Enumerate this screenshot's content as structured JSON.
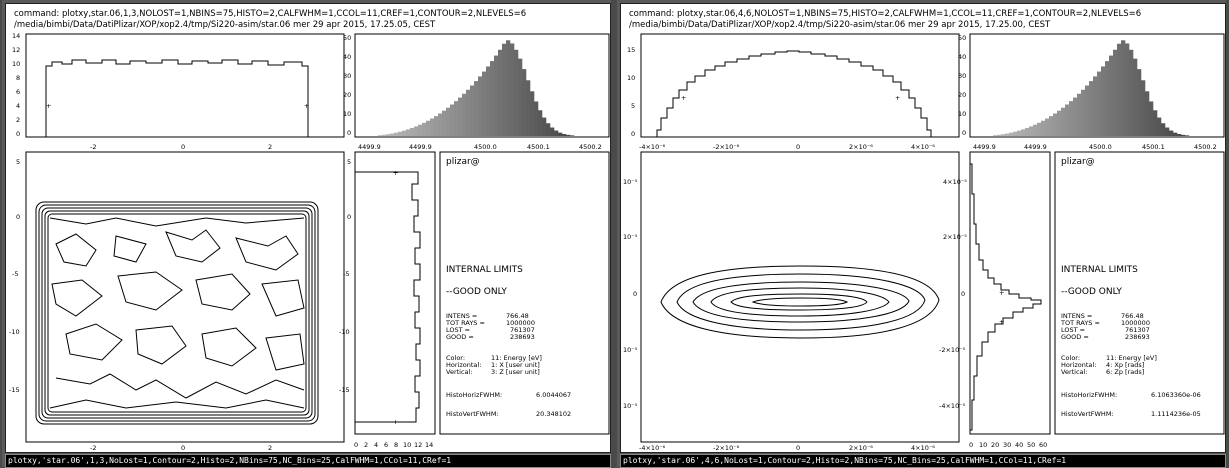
{
  "panels": [
    {
      "header_line1": "command: plotxy,star.06,1,3,NOLOST=1,NBINS=75,HISTO=2,CALFWHM=1,CCOL=11,CREF=1,CONTOUR=2,NLEVELS=6",
      "header_line2": "/media/bimbi/Data/DatiPlizar/XOP/xop2.4/tmp/Si220-asim/star.06   mer 29 apr 2015, 17.25.05, CEST",
      "top_hist_yticks": [
        "14",
        "12",
        "10",
        "8",
        "6",
        "4",
        "2",
        "0"
      ],
      "top_hist_xticks": [
        "-2",
        "0",
        "2"
      ],
      "energy_yticks": [
        "50",
        "40",
        "30",
        "20",
        "10",
        "0"
      ],
      "energy_xticks": [
        "4499.9",
        "4499.9",
        "4500.0",
        "4500.1",
        "4500.2"
      ],
      "main_yticks": [
        "5",
        "0",
        "-5",
        "-10",
        "-15"
      ],
      "main_xticks": [
        "-2",
        "0",
        "2"
      ],
      "side_yticks": [
        "5",
        "0",
        "-5",
        "-10",
        "-15"
      ],
      "side_xticks": [
        "0",
        "2",
        "4",
        "6",
        "8",
        "10",
        "12",
        "14"
      ],
      "info": {
        "user": "plizar@",
        "limits": "INTERNAL LIMITS",
        "good_only": "--GOOD ONLY",
        "intens_label": "INTENS  =",
        "intens_value": "766.48",
        "totrays_label": "TOT RAYS =",
        "totrays_value": "1000000",
        "lost_label": "LOST =",
        "lost_value": "761307",
        "good_label": "GOOD =",
        "good_value": "238693",
        "color_label": "Color:",
        "color_value": "11: Energy [eV]",
        "horiz_label": "Horizontal:",
        "horiz_value": "1: X [user unit]",
        "vert_label": "Vertical:",
        "vert_value": "3: Z [user unit]",
        "fwhm_h_label": "HistoHorizFWHM:",
        "fwhm_h_value": "6.0044067",
        "fwhm_v_label": "HistoVertFWHM:",
        "fwhm_v_value": "20.348102"
      },
      "command": "plotxy,'star.06',1,3,NoLost=1,Contour=2,Histo=2,NBins=75,NC_Bins=25,CalFWHM=1,CCol=11,CRef=1"
    },
    {
      "header_line1": "command: plotxy,star.06,4,6,NOLOST=1,NBINS=75,HISTO=2,CALFWHM=1,CCOL=11,CREF=1,CONTOUR=2,NLEVELS=6",
      "header_line2": "/media/bimbi/Data/DatiPlizar/XOP/xop2.4/tmp/Si220-asim/star.06   mer 29 apr 2015, 17.25.00, CEST",
      "top_hist_yticks": [
        "15",
        "10",
        "5",
        "0"
      ],
      "top_hist_xticks": [
        "-4×10⁻⁶",
        "-2×10⁻⁶",
        "0",
        "2×10⁻⁶",
        "4×10⁻⁶"
      ],
      "energy_yticks": [
        "50",
        "40",
        "30",
        "20",
        "10",
        "0"
      ],
      "energy_xticks": [
        "4499.9",
        "4499.9",
        "4500.0",
        "4500.1",
        "4500.2"
      ],
      "main_yticks": [
        "10⁻⁵",
        "10⁻⁵",
        "0",
        "10⁻⁵",
        "10⁻⁵"
      ],
      "main_xticks": [
        "-4×10⁻⁶",
        "-2×10⁻⁶",
        "0",
        "2×10⁻⁶",
        "4×10⁻⁶"
      ],
      "side_yticks": [
        "4×10⁻⁵",
        "2×10⁻⁵",
        "0",
        "-2×10⁻⁵",
        "-4×10⁻⁵"
      ],
      "side_xticks": [
        "0",
        "10",
        "20",
        "30",
        "40",
        "50",
        "60"
      ],
      "info": {
        "user": "plizar@",
        "limits": "INTERNAL LIMITS",
        "good_only": "--GOOD ONLY",
        "intens_label": "INTENS  =",
        "intens_value": "766.48",
        "totrays_label": "TOT RAYS =",
        "totrays_value": "1000000",
        "lost_label": "LOST =",
        "lost_value": "761307",
        "good_label": "GOOD =",
        "good_value": "238693",
        "color_label": "Color:",
        "color_value": "11: Energy [eV]",
        "horiz_label": "Horizontal:",
        "horiz_value": "4: Xp [rads]",
        "vert_label": "Vertical:",
        "vert_value": "6: Zp [rads]",
        "fwhm_h_label": "HistoHorizFWHM:",
        "fwhm_h_value": "6.1063360e-06",
        "fwhm_v_label": "HistoVertFWHM:",
        "fwhm_v_value": "1.1114236e-05"
      },
      "command": "plotxy,'star.06',4,6,NoLost=1,Contour=2,Histo=2,NBins=75,NC_Bins=25,CalFWHM=1,CCol=11,CRef=1"
    }
  ]
}
